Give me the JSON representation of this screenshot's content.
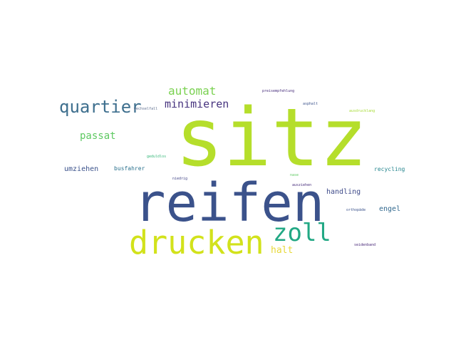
{
  "words": [
    {
      "text": "sitz",
      "color": "#b5de2b"
    },
    {
      "text": "reifen",
      "color": "#3b528b"
    },
    {
      "text": "drucken",
      "color": "#d2e21b"
    },
    {
      "text": "zoll",
      "color": "#22a884"
    },
    {
      "text": "quartier",
      "color": "#3e6f8e"
    },
    {
      "text": "automat",
      "color": "#7ad151"
    },
    {
      "text": "minimieren",
      "color": "#46337e"
    },
    {
      "text": "passat",
      "color": "#5ec962"
    },
    {
      "text": "halt",
      "color": "#e7d83a"
    },
    {
      "text": "umziehen",
      "color": "#3b528b"
    },
    {
      "text": "busfahrer",
      "color": "#2c728e"
    },
    {
      "text": "handling",
      "color": "#3e4a89"
    },
    {
      "text": "engel",
      "color": "#31688e"
    },
    {
      "text": "recycling",
      "color": "#25858e"
    },
    {
      "text": "preisempfehlung",
      "color": "#472d7b"
    },
    {
      "text": "wechselfall",
      "color": "#5b6b8c"
    },
    {
      "text": "asphalt",
      "color": "#3b528b"
    },
    {
      "text": "ausdrucklang",
      "color": "#a6db35"
    },
    {
      "text": "geduldlos",
      "color": "#35b779"
    },
    {
      "text": "niedrig",
      "color": "#414487"
    },
    {
      "text": "nase",
      "color": "#5ec962"
    },
    {
      "text": "ausziehen",
      "color": "#472d7b"
    },
    {
      "text": "orthopäde",
      "color": "#3b528b"
    },
    {
      "text": "seidenband",
      "color": "#482878"
    }
  ]
}
